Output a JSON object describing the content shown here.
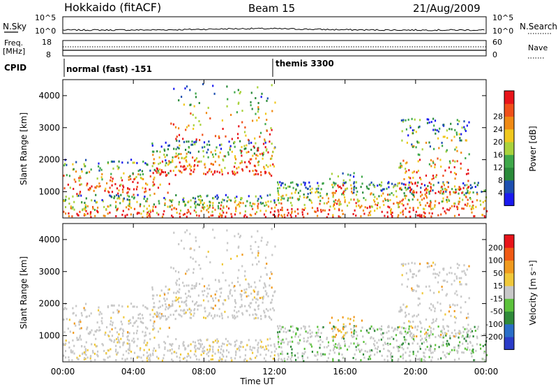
{
  "header": {
    "left": "Hokkaido (fitACF)",
    "center": "Beam 15",
    "right": "21/Aug/2009"
  },
  "chart_data": [
    {
      "type": "line",
      "name": "N.Sky / N.Search panel",
      "left_labels": [
        "N.Sky"
      ],
      "right_labels": [
        "N.Search"
      ],
      "left_ticks": [
        "10^5",
        "10^0"
      ],
      "right_ticks": [
        "10^5",
        "10^0"
      ]
    },
    {
      "type": "line",
      "name": "Freq / Nave panel",
      "left_labels": [
        "Freq.",
        "[MHz]"
      ],
      "right_labels": [
        "Nave"
      ],
      "left_ticks": [
        "18",
        "8"
      ],
      "right_ticks": [
        "60",
        "0"
      ]
    },
    {
      "type": "table",
      "name": "CPID",
      "label": "CPID",
      "segments": [
        {
          "start_ut": "00:00",
          "text": "normal (fast) -151"
        },
        {
          "start_ut": "12:00",
          "text": "themis 3300"
        }
      ]
    },
    {
      "type": "heatmap",
      "name": "Power panel",
      "ylabel": "Slant Range [km]",
      "yticks": [
        1000,
        2000,
        3000,
        4000
      ],
      "ylim": [
        180,
        4500
      ],
      "xlim_hours": [
        0,
        24
      ],
      "colorbar": {
        "label": "Power [dB]",
        "ticks": [
          "4",
          "8",
          "12",
          "16",
          "20",
          "24",
          "28"
        ],
        "colors": [
          "#1a1af0",
          "#1d4fb0",
          "#2a8a3a",
          "#3fa84a",
          "#a9d23c",
          "#f0c81e",
          "#f08a14",
          "#f0501a",
          "#e8141a"
        ]
      }
    },
    {
      "type": "heatmap",
      "name": "Velocity panel",
      "ylabel": "Slant Range [km]",
      "yticks": [
        1000,
        2000,
        3000,
        4000
      ],
      "ylim": [
        180,
        4500
      ],
      "xlim_hours": [
        0,
        24
      ],
      "xlabel": "Time UT",
      "xticks": [
        "00:00",
        "04:00",
        "08:00",
        "12:00",
        "16:00",
        "20:00",
        "00:00"
      ],
      "colorbar": {
        "label": "Velocity [m s⁻¹]",
        "ticks": [
          "200",
          "100",
          "50",
          "15",
          "-15",
          "-50",
          "-100",
          "-200"
        ],
        "colors": [
          "#2a3cc8",
          "#2a6ec8",
          "#2f8a3a",
          "#5cc23c",
          "#c8c8c8",
          "#f0c83a",
          "#f09a1e",
          "#f05a14",
          "#e8141a"
        ]
      }
    }
  ]
}
